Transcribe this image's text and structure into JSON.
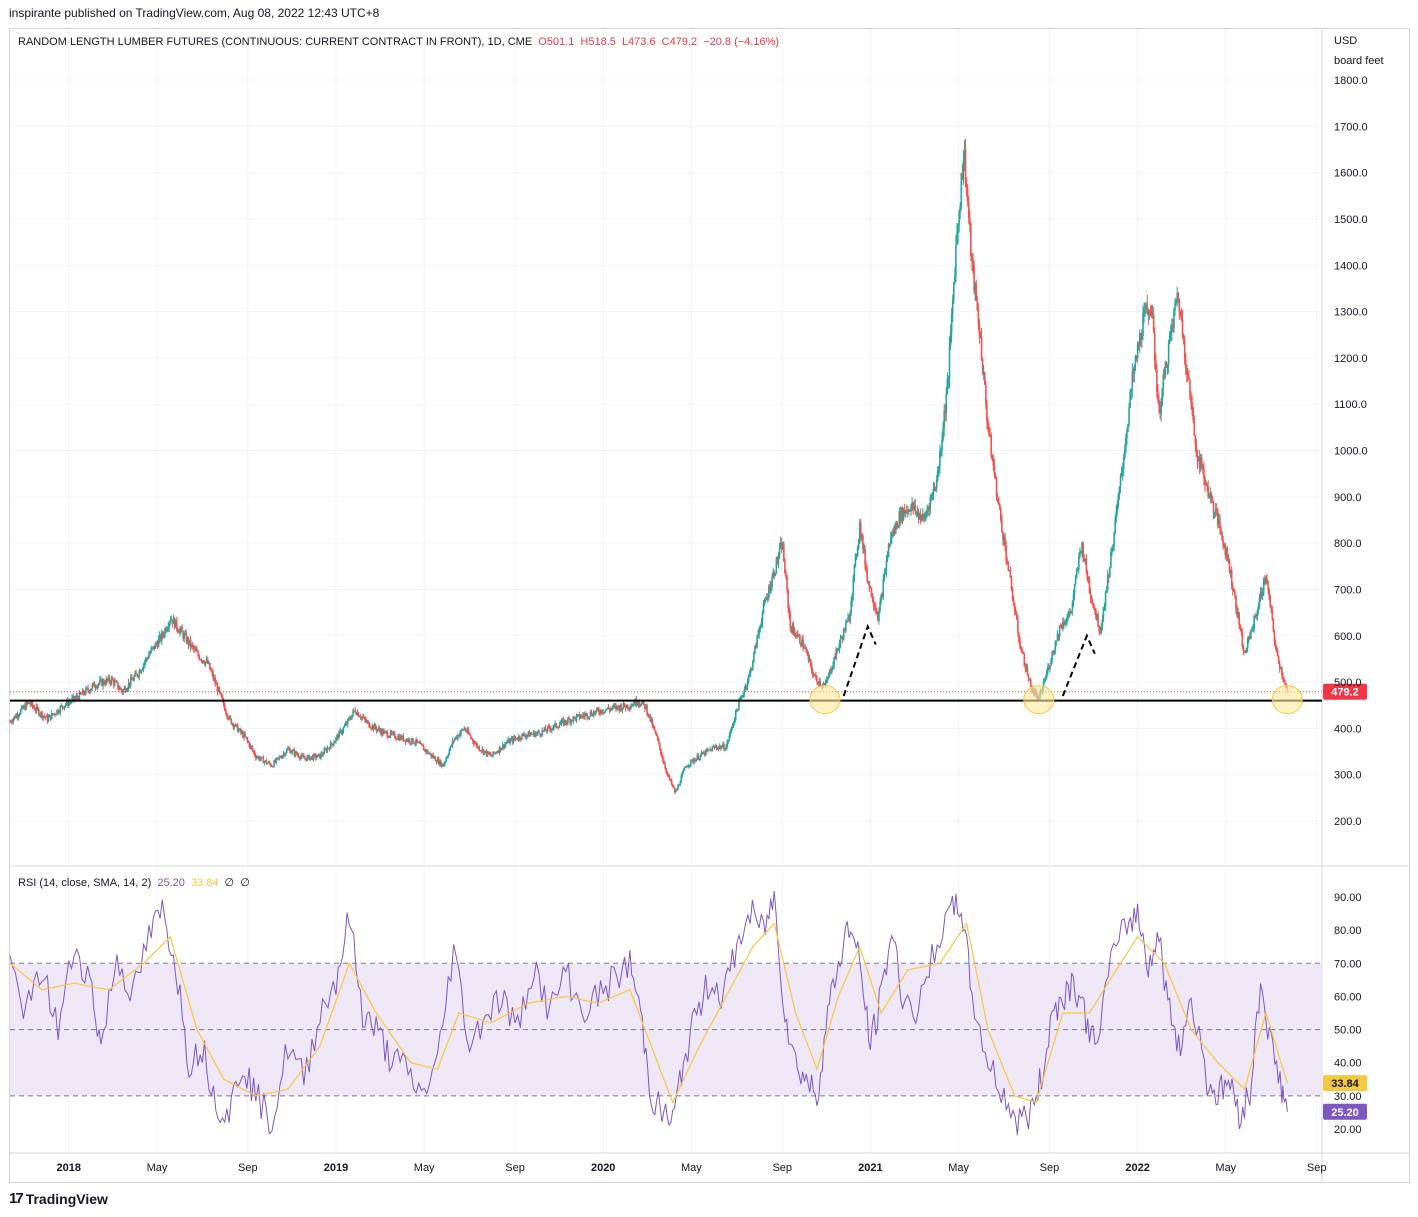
{
  "publish_line": "inspirante published on TradingView.com, Aug 08, 2022 12:43 UTC+8",
  "footer": {
    "brand": "TradingView",
    "logo_glyph": "17"
  },
  "price_legend": {
    "symbol": "RANDOM LENGTH LUMBER FUTURES (CONTINUOUS: CURRENT CONTRACT IN FRONT), 1D, CME",
    "o": "O501.1",
    "h": "H518.5",
    "l": "L473.6",
    "c": "C479.2",
    "chg": "−20.8 (−4.16%)"
  },
  "rsi_legend": {
    "title": "RSI (14, close, SMA, 14, 2)",
    "rsi": "25.20",
    "sma": "33.84",
    "z1": "∅",
    "z2": "∅"
  },
  "colors": {
    "up": "#26a69a",
    "down": "#ef5350",
    "rsi": "#7e57c2",
    "sma": "#f5c842",
    "band": "#ede7f6",
    "last_price": "#f23645",
    "highlight": "#fde79a"
  },
  "chart_data": [
    {
      "type": "candlestick",
      "title": "RANDOM LENGTH LUMBER FUTURES (CONTINUOUS: CURRENT CONTRACT IN FRONT), 1D, CME",
      "currency": "USD",
      "unit": "board feet",
      "ylim": [
        110,
        1870
      ],
      "y_ticks": [
        "1800.0",
        "1700.0",
        "1600.0",
        "1500.0",
        "1400.0",
        "1300.0",
        "1200.0",
        "1100.0",
        "1000.0",
        "900.0",
        "800.0",
        "700.0",
        "600.0",
        "500.0",
        "400.0",
        "300.0",
        "200.0"
      ],
      "y_tick_values": [
        1800,
        1700,
        1600,
        1500,
        1400,
        1300,
        1200,
        1100,
        1000,
        900,
        800,
        700,
        600,
        500,
        400,
        300,
        200
      ],
      "last_price": 479.2,
      "last_price_label": "479.2",
      "support_line": 460,
      "x_label_months": [
        "2018",
        "May",
        "Sep",
        "2019",
        "May",
        "Sep",
        "2020",
        "May",
        "Sep",
        "2021",
        "May",
        "Sep",
        "2022",
        "May",
        "Sep"
      ],
      "x_label_positions": [
        2018.0,
        2018.33,
        2018.67,
        2019.0,
        2019.33,
        2019.67,
        2020.0,
        2020.33,
        2020.67,
        2021.0,
        2021.33,
        2021.67,
        2022.0,
        2022.33,
        2022.67
      ],
      "xlim": [
        2017.78,
        2022.69
      ],
      "approx_path": [
        [
          2017.78,
          415
        ],
        [
          2017.85,
          455
        ],
        [
          2017.92,
          420
        ],
        [
          2017.98,
          450
        ],
        [
          2018.04,
          470
        ],
        [
          2018.1,
          495
        ],
        [
          2018.16,
          505
        ],
        [
          2018.2,
          480
        ],
        [
          2018.26,
          520
        ],
        [
          2018.3,
          560
        ],
        [
          2018.35,
          600
        ],
        [
          2018.38,
          640
        ],
        [
          2018.43,
          600
        ],
        [
          2018.48,
          560
        ],
        [
          2018.52,
          540
        ],
        [
          2018.56,
          480
        ],
        [
          2018.6,
          420
        ],
        [
          2018.66,
          380
        ],
        [
          2018.7,
          340
        ],
        [
          2018.76,
          320
        ],
        [
          2018.82,
          355
        ],
        [
          2018.88,
          335
        ],
        [
          2018.94,
          340
        ],
        [
          2018.99,
          370
        ],
        [
          2019.04,
          410
        ],
        [
          2019.07,
          440
        ],
        [
          2019.12,
          410
        ],
        [
          2019.18,
          390
        ],
        [
          2019.24,
          380
        ],
        [
          2019.3,
          370
        ],
        [
          2019.36,
          340
        ],
        [
          2019.4,
          320
        ],
        [
          2019.44,
          375
        ],
        [
          2019.48,
          400
        ],
        [
          2019.53,
          360
        ],
        [
          2019.58,
          340
        ],
        [
          2019.64,
          370
        ],
        [
          2019.7,
          385
        ],
        [
          2019.76,
          390
        ],
        [
          2019.82,
          405
        ],
        [
          2019.88,
          420
        ],
        [
          2019.94,
          430
        ],
        [
          2020.0,
          440
        ],
        [
          2020.05,
          445
        ],
        [
          2020.1,
          450
        ],
        [
          2020.13,
          460
        ],
        [
          2020.16,
          445
        ],
        [
          2020.2,
          380
        ],
        [
          2020.24,
          300
        ],
        [
          2020.27,
          260
        ],
        [
          2020.31,
          320
        ],
        [
          2020.36,
          340
        ],
        [
          2020.42,
          360
        ],
        [
          2020.46,
          360
        ],
        [
          2020.5,
          440
        ],
        [
          2020.55,
          520
        ],
        [
          2020.6,
          660
        ],
        [
          2020.64,
          740
        ],
        [
          2020.67,
          800
        ],
        [
          2020.7,
          620
        ],
        [
          2020.75,
          580
        ],
        [
          2020.79,
          510
        ],
        [
          2020.83,
          490
        ],
        [
          2020.87,
          560
        ],
        [
          2020.92,
          640
        ],
        [
          2020.96,
          840
        ],
        [
          2020.99,
          720
        ],
        [
          2021.03,
          640
        ],
        [
          2021.07,
          800
        ],
        [
          2021.11,
          860
        ],
        [
          2021.15,
          880
        ],
        [
          2021.2,
          850
        ],
        [
          2021.25,
          940
        ],
        [
          2021.29,
          1150
        ],
        [
          2021.32,
          1440
        ],
        [
          2021.35,
          1650
        ],
        [
          2021.38,
          1400
        ],
        [
          2021.41,
          1250
        ],
        [
          2021.44,
          1050
        ],
        [
          2021.48,
          880
        ],
        [
          2021.52,
          730
        ],
        [
          2021.56,
          580
        ],
        [
          2021.6,
          490
        ],
        [
          2021.63,
          460
        ],
        [
          2021.67,
          540
        ],
        [
          2021.71,
          620
        ],
        [
          2021.75,
          650
        ],
        [
          2021.79,
          800
        ],
        [
          2021.82,
          700
        ],
        [
          2021.86,
          610
        ],
        [
          2021.9,
          770
        ],
        [
          2021.94,
          950
        ],
        [
          2021.98,
          1150
        ],
        [
          2022.02,
          1280
        ],
        [
          2022.05,
          1320
        ],
        [
          2022.08,
          1080
        ],
        [
          2022.11,
          1200
        ],
        [
          2022.15,
          1340
        ],
        [
          2022.18,
          1200
        ],
        [
          2022.22,
          1000
        ],
        [
          2022.26,
          920
        ],
        [
          2022.3,
          850
        ],
        [
          2022.34,
          760
        ],
        [
          2022.37,
          660
        ],
        [
          2022.4,
          560
        ],
        [
          2022.44,
          640
        ],
        [
          2022.48,
          730
        ],
        [
          2022.52,
          560
        ],
        [
          2022.56,
          479.2
        ]
      ],
      "annotations": [
        {
          "type": "circle",
          "x": 2020.83,
          "y": 462
        },
        {
          "type": "circle",
          "x": 2021.63,
          "y": 462
        },
        {
          "type": "circle",
          "x": 2022.56,
          "y": 462
        },
        {
          "type": "dashed_arrow",
          "from": [
            2020.9,
            470
          ],
          "to": [
            2020.99,
            620
          ]
        },
        {
          "type": "dashed_arrow",
          "from": [
            2021.72,
            470
          ],
          "to": [
            2021.81,
            600
          ]
        }
      ]
    },
    {
      "type": "line",
      "title": "RSI (14, close, SMA, 14, 2)",
      "ylim": [
        12,
        96
      ],
      "y_ticks": [
        "90.00",
        "80.00",
        "70.00",
        "60.00",
        "50.00",
        "40.00",
        "30.00",
        "20.00"
      ],
      "y_tick_values": [
        90,
        80,
        70,
        60,
        50,
        40,
        30,
        20
      ],
      "bands": {
        "upper": 70,
        "middle": 50,
        "lower": 30
      },
      "last_rsi": 25.2,
      "last_sma": 33.84,
      "last_rsi_label": "25.20",
      "last_sma_label": "33.84",
      "series": [
        {
          "name": "RSI",
          "values_approx": [
            [
              2017.78,
              70
            ],
            [
              2017.84,
              55
            ],
            [
              2017.9,
              68
            ],
            [
              2017.96,
              50
            ],
            [
              2018.02,
              75
            ],
            [
              2018.08,
              65
            ],
            [
              2018.12,
              45
            ],
            [
              2018.18,
              72
            ],
            [
              2018.24,
              60
            ],
            [
              2018.3,
              78
            ],
            [
              2018.35,
              86
            ],
            [
              2018.4,
              70
            ],
            [
              2018.45,
              40
            ],
            [
              2018.5,
              45
            ],
            [
              2018.55,
              28
            ],
            [
              2018.6,
              25
            ],
            [
              2018.65,
              40
            ],
            [
              2018.7,
              30
            ],
            [
              2018.76,
              22
            ],
            [
              2018.82,
              45
            ],
            [
              2018.88,
              35
            ],
            [
              2018.94,
              55
            ],
            [
              2019.0,
              65
            ],
            [
              2019.05,
              84
            ],
            [
              2019.1,
              55
            ],
            [
              2019.15,
              50
            ],
            [
              2019.2,
              42
            ],
            [
              2019.26,
              38
            ],
            [
              2019.32,
              30
            ],
            [
              2019.38,
              40
            ],
            [
              2019.44,
              75
            ],
            [
              2019.5,
              45
            ],
            [
              2019.56,
              55
            ],
            [
              2019.62,
              60
            ],
            [
              2019.68,
              50
            ],
            [
              2019.74,
              70
            ],
            [
              2019.8,
              55
            ],
            [
              2019.86,
              68
            ],
            [
              2019.92,
              55
            ],
            [
              2019.98,
              60
            ],
            [
              2020.04,
              65
            ],
            [
              2020.1,
              70
            ],
            [
              2020.14,
              55
            ],
            [
              2020.18,
              30
            ],
            [
              2020.22,
              25
            ],
            [
              2020.26,
              22
            ],
            [
              2020.3,
              40
            ],
            [
              2020.35,
              55
            ],
            [
              2020.4,
              65
            ],
            [
              2020.45,
              60
            ],
            [
              2020.5,
              75
            ],
            [
              2020.55,
              85
            ],
            [
              2020.6,
              80
            ],
            [
              2020.64,
              90
            ],
            [
              2020.68,
              55
            ],
            [
              2020.72,
              40
            ],
            [
              2020.76,
              35
            ],
            [
              2020.8,
              30
            ],
            [
              2020.84,
              55
            ],
            [
              2020.88,
              70
            ],
            [
              2020.92,
              82
            ],
            [
              2020.96,
              70
            ],
            [
              2021.0,
              45
            ],
            [
              2021.04,
              60
            ],
            [
              2021.08,
              80
            ],
            [
              2021.12,
              60
            ],
            [
              2021.18,
              55
            ],
            [
              2021.24,
              75
            ],
            [
              2021.3,
              85
            ],
            [
              2021.34,
              88
            ],
            [
              2021.38,
              60
            ],
            [
              2021.44,
              40
            ],
            [
              2021.5,
              30
            ],
            [
              2021.55,
              22
            ],
            [
              2021.6,
              25
            ],
            [
              2021.64,
              35
            ],
            [
              2021.68,
              55
            ],
            [
              2021.72,
              60
            ],
            [
              2021.76,
              65
            ],
            [
              2021.8,
              55
            ],
            [
              2021.84,
              45
            ],
            [
              2021.9,
              70
            ],
            [
              2021.96,
              82
            ],
            [
              2022.0,
              85
            ],
            [
              2022.04,
              70
            ],
            [
              2022.08,
              78
            ],
            [
              2022.12,
              55
            ],
            [
              2022.16,
              45
            ],
            [
              2022.2,
              60
            ],
            [
              2022.26,
              35
            ],
            [
              2022.3,
              30
            ],
            [
              2022.34,
              35
            ],
            [
              2022.38,
              25
            ],
            [
              2022.42,
              30
            ],
            [
              2022.46,
              65
            ],
            [
              2022.5,
              45
            ],
            [
              2022.54,
              32
            ],
            [
              2022.56,
              25.2
            ]
          ]
        },
        {
          "name": "RSI-based MA",
          "values_approx": [
            [
              2017.78,
              70
            ],
            [
              2017.9,
              62
            ],
            [
              2018.02,
              64
            ],
            [
              2018.15,
              62
            ],
            [
              2018.28,
              70
            ],
            [
              2018.38,
              78
            ],
            [
              2018.48,
              50
            ],
            [
              2018.58,
              35
            ],
            [
              2018.7,
              30
            ],
            [
              2018.82,
              32
            ],
            [
              2018.94,
              45
            ],
            [
              2019.05,
              70
            ],
            [
              2019.15,
              55
            ],
            [
              2019.28,
              40
            ],
            [
              2019.38,
              38
            ],
            [
              2019.46,
              55
            ],
            [
              2019.58,
              52
            ],
            [
              2019.72,
              58
            ],
            [
              2019.86,
              60
            ],
            [
              2019.98,
              58
            ],
            [
              2020.1,
              62
            ],
            [
              2020.18,
              45
            ],
            [
              2020.26,
              28
            ],
            [
              2020.36,
              45
            ],
            [
              2020.46,
              60
            ],
            [
              2020.56,
              75
            ],
            [
              2020.64,
              82
            ],
            [
              2020.72,
              55
            ],
            [
              2020.8,
              38
            ],
            [
              2020.88,
              60
            ],
            [
              2020.96,
              75
            ],
            [
              2021.04,
              55
            ],
            [
              2021.14,
              68
            ],
            [
              2021.26,
              70
            ],
            [
              2021.36,
              82
            ],
            [
              2021.44,
              50
            ],
            [
              2021.54,
              30
            ],
            [
              2021.62,
              28
            ],
            [
              2021.72,
              55
            ],
            [
              2021.82,
              55
            ],
            [
              2021.92,
              68
            ],
            [
              2022.0,
              78
            ],
            [
              2022.1,
              70
            ],
            [
              2022.2,
              50
            ],
            [
              2022.3,
              40
            ],
            [
              2022.4,
              32
            ],
            [
              2022.48,
              55
            ],
            [
              2022.56,
              33.84
            ]
          ]
        }
      ]
    }
  ]
}
